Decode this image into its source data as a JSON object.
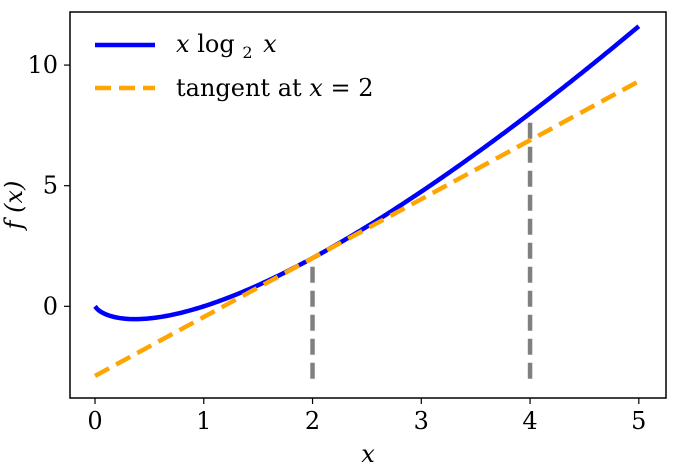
{
  "chart_data": {
    "type": "line",
    "xlabel": "x",
    "ylabel": "f (x)",
    "xlim": [
      -0.23,
      5.25
    ],
    "ylim": [
      -3.8,
      12.2
    ],
    "x_ticks": [
      0,
      1,
      2,
      3,
      4,
      5
    ],
    "y_ticks": [
      0,
      5,
      10
    ],
    "grid": false,
    "legend_position": "top-left",
    "series": [
      {
        "name": "x log₂ x",
        "function": "x*log2(x)",
        "x_range": [
          0,
          5
        ],
        "style": "solid",
        "color": "#0000ff",
        "points": [
          [
            0,
            0
          ],
          [
            0.05,
            -0.216
          ],
          [
            0.1,
            -0.332
          ],
          [
            0.2,
            -0.464
          ],
          [
            0.3,
            -0.521
          ],
          [
            0.37,
            -0.531
          ],
          [
            0.5,
            -0.5
          ],
          [
            0.75,
            -0.311
          ],
          [
            1,
            0
          ],
          [
            1.5,
            0.877
          ],
          [
            2,
            2
          ],
          [
            2.5,
            3.305
          ],
          [
            3,
            4.755
          ],
          [
            3.5,
            6.326
          ],
          [
            4,
            8
          ],
          [
            4.5,
            9.765
          ],
          [
            5,
            11.61
          ]
        ]
      },
      {
        "name": "tangent at x = 2",
        "function": "2 + (1 + 1/ln 2)(x - 2)",
        "x_range": [
          0,
          5
        ],
        "style": "dashed",
        "color": "#ffa500",
        "points": [
          [
            0,
            -2.885
          ],
          [
            5,
            9.328
          ]
        ]
      }
    ],
    "vertical_markers": [
      {
        "x": 2,
        "y_from": -3,
        "y_to": 2,
        "color": "#808080",
        "style": "dashed"
      },
      {
        "x": 4,
        "y_from": -3,
        "y_to": 8,
        "color": "#808080",
        "style": "dashed"
      }
    ]
  },
  "legend": {
    "series_0_text": "x log",
    "series_0_sub": "2",
    "series_0_tail": "x",
    "series_1_text": "tangent at ",
    "series_1_italic": "x",
    "series_1_tail": " = 2"
  }
}
